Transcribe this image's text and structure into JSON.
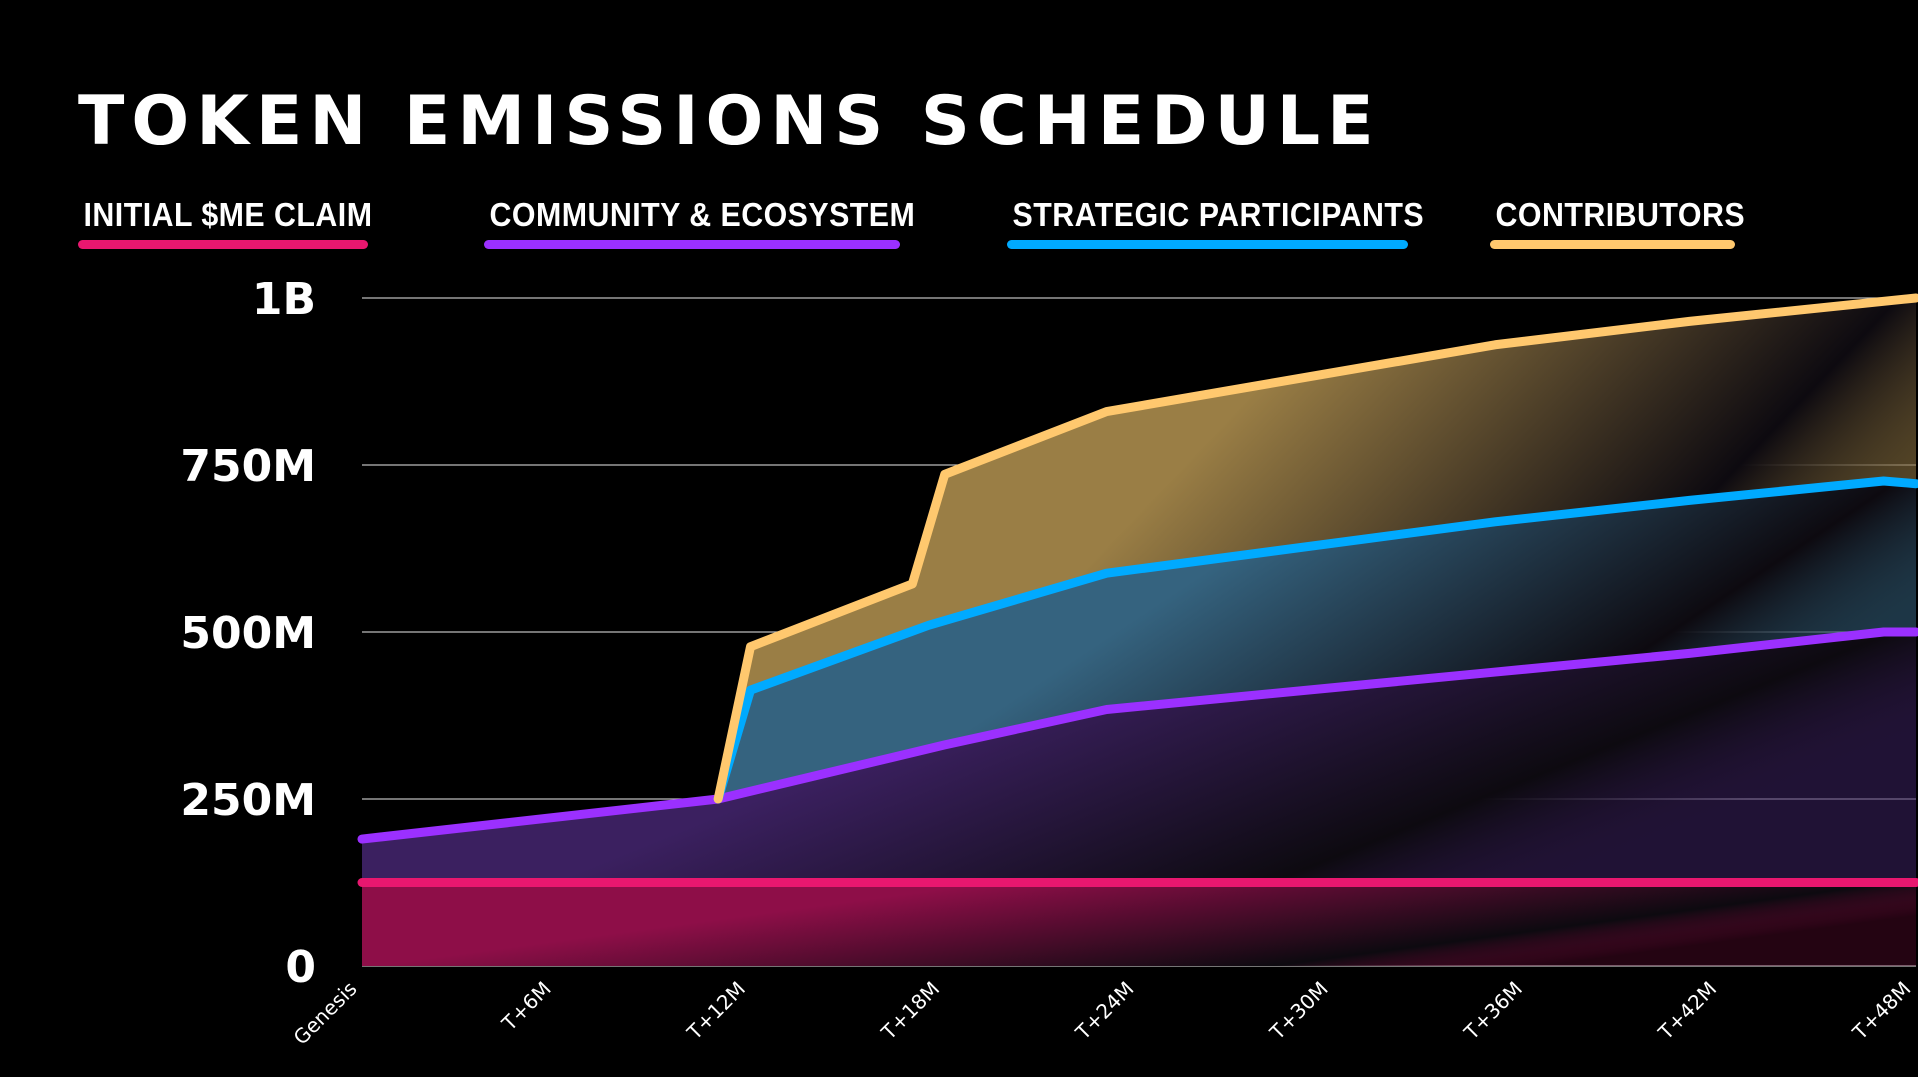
{
  "title": "TOKEN EMISSIONS SCHEDULE",
  "chart_data": {
    "type": "area",
    "stacked": true,
    "title": "TOKEN EMISSIONS SCHEDULE",
    "xlabel": "",
    "ylabel": "",
    "x_unit": "months after genesis",
    "xlim": [
      0,
      48
    ],
    "ylim": [
      0,
      1000000000
    ],
    "x_ticks": [
      {
        "value": 0,
        "label": "Genesis"
      },
      {
        "value": 6,
        "label": "T+6M"
      },
      {
        "value": 12,
        "label": "T+12M"
      },
      {
        "value": 18,
        "label": "T+18M"
      },
      {
        "value": 24,
        "label": "T+24M"
      },
      {
        "value": 30,
        "label": "T+30M"
      },
      {
        "value": 36,
        "label": "T+36M"
      },
      {
        "value": 42,
        "label": "T+42M"
      },
      {
        "value": 48,
        "label": "T+48M"
      }
    ],
    "y_ticks": [
      {
        "value": 0,
        "label": "0"
      },
      {
        "value": 250000000,
        "label": "250M"
      },
      {
        "value": 500000000,
        "label": "500M"
      },
      {
        "value": 750000000,
        "label": "750M"
      },
      {
        "value": 1000000000,
        "label": "1B"
      }
    ],
    "grid": true,
    "legend_position": "top",
    "series_note_cumulative": "each series value is the cumulative top edge of its stacked band",
    "series": [
      {
        "name": "INITIAL $ME CLAIM",
        "color": "#e8176f",
        "fill": "#8e0e48",
        "points": [
          [
            0,
            125000000
          ],
          [
            48,
            125000000
          ]
        ]
      },
      {
        "name": "COMMUNITY & ECOSYSTEM",
        "color": "#9b30ff",
        "fill": "#3b2060",
        "points": [
          [
            0,
            190000000
          ],
          [
            11,
            250000000
          ],
          [
            18,
            331000000
          ],
          [
            23,
            384000000
          ],
          [
            35,
            440000000
          ],
          [
            41,
            468000000
          ],
          [
            47,
            500000000
          ],
          [
            48,
            500000000
          ]
        ]
      },
      {
        "name": "STRATEGIC PARTICIPANTS",
        "color": "#00aaff",
        "fill": "#35637f",
        "points": [
          [
            11,
            250000000
          ],
          [
            12,
            413000000
          ],
          [
            17.5,
            510000000
          ],
          [
            23,
            588000000
          ],
          [
            35,
            665000000
          ],
          [
            41,
            697000000
          ],
          [
            47,
            726000000
          ],
          [
            48,
            722000000
          ]
        ]
      },
      {
        "name": "CONTRIBUTORS",
        "color": "#ffc86e",
        "fill": "#9a7e45",
        "points": [
          [
            11,
            250000000
          ],
          [
            12,
            478000000
          ],
          [
            17,
            572000000
          ],
          [
            18,
            736000000
          ],
          [
            23,
            830000000
          ],
          [
            35,
            930000000
          ],
          [
            41,
            965000000
          ],
          [
            48,
            1000000000
          ]
        ]
      }
    ]
  }
}
